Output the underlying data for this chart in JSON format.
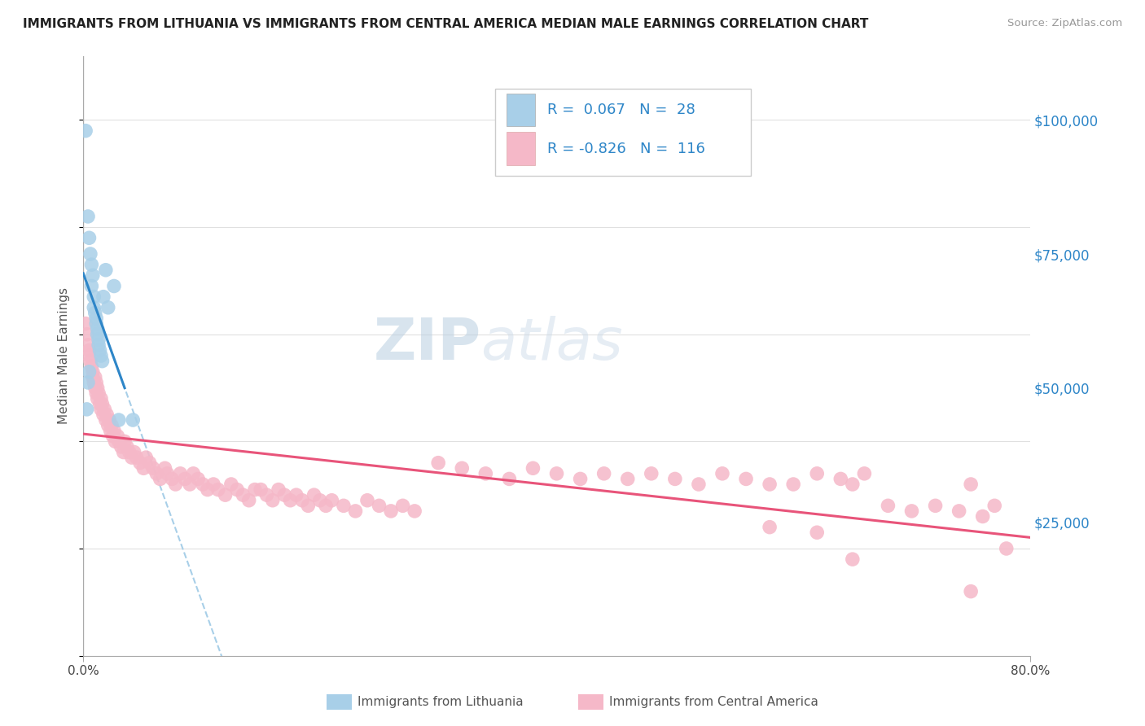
{
  "title": "IMMIGRANTS FROM LITHUANIA VS IMMIGRANTS FROM CENTRAL AMERICA MEDIAN MALE EARNINGS CORRELATION CHART",
  "source": "Source: ZipAtlas.com",
  "ylabel": "Median Male Earnings",
  "watermark_zip": "ZIP",
  "watermark_atlas": "atlas",
  "yticks": [
    25000,
    50000,
    75000,
    100000
  ],
  "ytick_labels": [
    "$25,000",
    "$50,000",
    "$75,000",
    "$100,000"
  ],
  "xlim": [
    0.0,
    80.0
  ],
  "ylim": [
    0,
    112000
  ],
  "legend_blue_r": "0.067",
  "legend_blue_n": "28",
  "legend_pink_r": "-0.826",
  "legend_pink_n": "116",
  "legend_label_blue": "Immigrants from Lithuania",
  "legend_label_pink": "Immigrants from Central America",
  "blue_color": "#a8cfe8",
  "pink_color": "#f5b8c8",
  "blue_line_color": "#2e86c8",
  "pink_line_color": "#e8547a",
  "dashed_line_color": "#a8cfe8",
  "blue_scatter": [
    [
      0.2,
      98000
    ],
    [
      0.4,
      82000
    ],
    [
      0.5,
      78000
    ],
    [
      0.6,
      75000
    ],
    [
      0.7,
      73000
    ],
    [
      0.8,
      71000
    ],
    [
      0.7,
      69000
    ],
    [
      0.9,
      67000
    ],
    [
      0.9,
      65000
    ],
    [
      1.0,
      64000
    ],
    [
      1.1,
      63000
    ],
    [
      1.1,
      62000
    ],
    [
      1.2,
      61000
    ],
    [
      1.2,
      60000
    ],
    [
      1.3,
      59000
    ],
    [
      1.3,
      58000
    ],
    [
      1.4,
      57000
    ],
    [
      1.5,
      56000
    ],
    [
      1.6,
      55000
    ],
    [
      1.7,
      67000
    ],
    [
      1.9,
      72000
    ],
    [
      2.1,
      65000
    ],
    [
      2.6,
      69000
    ],
    [
      3.0,
      44000
    ],
    [
      4.2,
      44000
    ],
    [
      0.3,
      46000
    ],
    [
      0.4,
      51000
    ],
    [
      0.5,
      53000
    ]
  ],
  "pink_scatter": [
    [
      0.2,
      62000
    ],
    [
      0.3,
      60000
    ],
    [
      0.4,
      58000
    ],
    [
      0.5,
      56000
    ],
    [
      0.5,
      57000
    ],
    [
      0.6,
      55000
    ],
    [
      0.7,
      54000
    ],
    [
      0.8,
      52000
    ],
    [
      0.8,
      53000
    ],
    [
      0.9,
      51000
    ],
    [
      1.0,
      52000
    ],
    [
      1.0,
      50000
    ],
    [
      1.1,
      51000
    ],
    [
      1.1,
      49000
    ],
    [
      1.2,
      50000
    ],
    [
      1.2,
      48000
    ],
    [
      1.3,
      49000
    ],
    [
      1.4,
      47000
    ],
    [
      1.5,
      48000
    ],
    [
      1.5,
      46000
    ],
    [
      1.6,
      47000
    ],
    [
      1.7,
      45000
    ],
    [
      1.8,
      46000
    ],
    [
      1.9,
      44000
    ],
    [
      2.0,
      45000
    ],
    [
      2.1,
      43000
    ],
    [
      2.2,
      44000
    ],
    [
      2.3,
      42000
    ],
    [
      2.4,
      43000
    ],
    [
      2.5,
      41000
    ],
    [
      2.6,
      42000
    ],
    [
      2.7,
      40000
    ],
    [
      2.9,
      41000
    ],
    [
      3.0,
      40000
    ],
    [
      3.2,
      39000
    ],
    [
      3.4,
      38000
    ],
    [
      3.5,
      40000
    ],
    [
      3.7,
      39000
    ],
    [
      3.9,
      38000
    ],
    [
      4.1,
      37000
    ],
    [
      4.3,
      38000
    ],
    [
      4.5,
      37000
    ],
    [
      4.8,
      36000
    ],
    [
      5.1,
      35000
    ],
    [
      5.3,
      37000
    ],
    [
      5.6,
      36000
    ],
    [
      5.9,
      35000
    ],
    [
      6.2,
      34000
    ],
    [
      6.5,
      33000
    ],
    [
      6.9,
      35000
    ],
    [
      7.1,
      34000
    ],
    [
      7.5,
      33000
    ],
    [
      7.8,
      32000
    ],
    [
      8.2,
      34000
    ],
    [
      8.6,
      33000
    ],
    [
      9.0,
      32000
    ],
    [
      9.3,
      34000
    ],
    [
      9.7,
      33000
    ],
    [
      10.1,
      32000
    ],
    [
      10.5,
      31000
    ],
    [
      11.0,
      32000
    ],
    [
      11.4,
      31000
    ],
    [
      12.0,
      30000
    ],
    [
      12.5,
      32000
    ],
    [
      13.0,
      31000
    ],
    [
      13.5,
      30000
    ],
    [
      14.0,
      29000
    ],
    [
      14.5,
      31000
    ],
    [
      15.0,
      31000
    ],
    [
      15.5,
      30000
    ],
    [
      16.0,
      29000
    ],
    [
      16.5,
      31000
    ],
    [
      17.0,
      30000
    ],
    [
      17.5,
      29000
    ],
    [
      18.0,
      30000
    ],
    [
      18.5,
      29000
    ],
    [
      19.0,
      28000
    ],
    [
      19.5,
      30000
    ],
    [
      20.0,
      29000
    ],
    [
      20.5,
      28000
    ],
    [
      21.0,
      29000
    ],
    [
      22.0,
      28000
    ],
    [
      23.0,
      27000
    ],
    [
      24.0,
      29000
    ],
    [
      25.0,
      28000
    ],
    [
      26.0,
      27000
    ],
    [
      27.0,
      28000
    ],
    [
      28.0,
      27000
    ],
    [
      30.0,
      36000
    ],
    [
      32.0,
      35000
    ],
    [
      34.0,
      34000
    ],
    [
      36.0,
      33000
    ],
    [
      38.0,
      35000
    ],
    [
      40.0,
      34000
    ],
    [
      42.0,
      33000
    ],
    [
      44.0,
      34000
    ],
    [
      46.0,
      33000
    ],
    [
      48.0,
      34000
    ],
    [
      50.0,
      33000
    ],
    [
      52.0,
      32000
    ],
    [
      54.0,
      34000
    ],
    [
      56.0,
      33000
    ],
    [
      58.0,
      32000
    ],
    [
      60.0,
      32000
    ],
    [
      62.0,
      34000
    ],
    [
      64.0,
      33000
    ],
    [
      65.0,
      32000
    ],
    [
      66.0,
      34000
    ],
    [
      68.0,
      28000
    ],
    [
      70.0,
      27000
    ],
    [
      72.0,
      28000
    ],
    [
      74.0,
      27000
    ],
    [
      75.0,
      32000
    ],
    [
      76.0,
      26000
    ],
    [
      77.0,
      28000
    ],
    [
      78.0,
      20000
    ],
    [
      58.0,
      24000
    ],
    [
      62.0,
      23000
    ],
    [
      65.0,
      18000
    ],
    [
      75.0,
      12000
    ]
  ]
}
